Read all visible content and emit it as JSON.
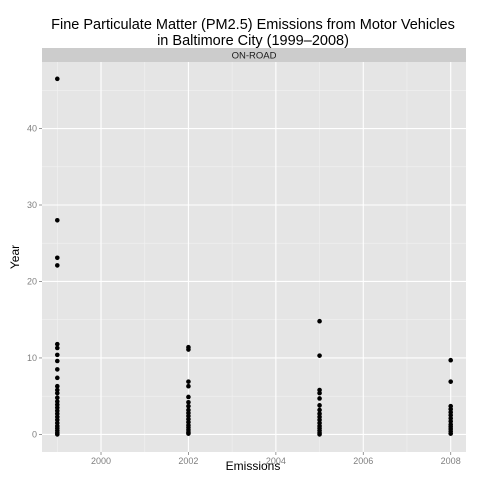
{
  "chart_data": {
    "type": "scatter",
    "title_lines": [
      "Fine Particulate Matter (PM2.5) Emissions from Motor Vehicles",
      "in Baltimore City (1999–2008)"
    ],
    "facet_label": "ON-ROAD",
    "xlabel": "Emissions",
    "ylabel": "Year",
    "xlim": [
      1998.65,
      2008.35
    ],
    "ylim": [
      -2.3,
      48.7
    ],
    "x_ticks": [
      2000,
      2002,
      2004,
      2006,
      2008
    ],
    "y_ticks": [
      0,
      10,
      20,
      30,
      40
    ],
    "grid": true,
    "points": [
      {
        "x": 1999,
        "y": 46.5
      },
      {
        "x": 1999,
        "y": 28.0
      },
      {
        "x": 1999,
        "y": 23.1
      },
      {
        "x": 1999,
        "y": 22.1
      },
      {
        "x": 1999,
        "y": 11.8
      },
      {
        "x": 1999,
        "y": 11.3
      },
      {
        "x": 1999,
        "y": 10.4
      },
      {
        "x": 1999,
        "y": 9.6
      },
      {
        "x": 1999,
        "y": 8.5
      },
      {
        "x": 1999,
        "y": 7.4
      },
      {
        "x": 1999,
        "y": 6.3
      },
      {
        "x": 1999,
        "y": 5.8
      },
      {
        "x": 1999,
        "y": 5.4
      },
      {
        "x": 1999,
        "y": 4.8
      },
      {
        "x": 1999,
        "y": 4.3
      },
      {
        "x": 1999,
        "y": 3.9
      },
      {
        "x": 1999,
        "y": 3.5
      },
      {
        "x": 1999,
        "y": 3.1
      },
      {
        "x": 1999,
        "y": 2.7
      },
      {
        "x": 1999,
        "y": 2.3
      },
      {
        "x": 1999,
        "y": 1.9
      },
      {
        "x": 1999,
        "y": 1.5
      },
      {
        "x": 1999,
        "y": 1.1
      },
      {
        "x": 1999,
        "y": 0.8
      },
      {
        "x": 1999,
        "y": 0.5
      },
      {
        "x": 1999,
        "y": 0.2
      },
      {
        "x": 1999,
        "y": 0.0
      },
      {
        "x": 2002,
        "y": 11.4
      },
      {
        "x": 2002,
        "y": 11.1
      },
      {
        "x": 2002,
        "y": 6.9
      },
      {
        "x": 2002,
        "y": 6.3
      },
      {
        "x": 2002,
        "y": 4.9
      },
      {
        "x": 2002,
        "y": 4.2
      },
      {
        "x": 2002,
        "y": 3.7
      },
      {
        "x": 2002,
        "y": 3.2
      },
      {
        "x": 2002,
        "y": 2.8
      },
      {
        "x": 2002,
        "y": 2.4
      },
      {
        "x": 2002,
        "y": 2.0
      },
      {
        "x": 2002,
        "y": 1.6
      },
      {
        "x": 2002,
        "y": 1.2
      },
      {
        "x": 2002,
        "y": 0.9
      },
      {
        "x": 2002,
        "y": 0.6
      },
      {
        "x": 2002,
        "y": 0.3
      },
      {
        "x": 2002,
        "y": 0.1
      },
      {
        "x": 2005,
        "y": 14.8
      },
      {
        "x": 2005,
        "y": 10.3
      },
      {
        "x": 2005,
        "y": 5.8
      },
      {
        "x": 2005,
        "y": 5.4
      },
      {
        "x": 2005,
        "y": 4.7
      },
      {
        "x": 2005,
        "y": 3.8
      },
      {
        "x": 2005,
        "y": 3.2
      },
      {
        "x": 2005,
        "y": 2.7
      },
      {
        "x": 2005,
        "y": 2.3
      },
      {
        "x": 2005,
        "y": 1.9
      },
      {
        "x": 2005,
        "y": 1.5
      },
      {
        "x": 2005,
        "y": 1.1
      },
      {
        "x": 2005,
        "y": 0.8
      },
      {
        "x": 2005,
        "y": 0.5
      },
      {
        "x": 2005,
        "y": 0.2
      },
      {
        "x": 2005,
        "y": 0.0
      },
      {
        "x": 2008,
        "y": 9.7
      },
      {
        "x": 2008,
        "y": 6.9
      },
      {
        "x": 2008,
        "y": 3.7
      },
      {
        "x": 2008,
        "y": 3.3
      },
      {
        "x": 2008,
        "y": 2.9
      },
      {
        "x": 2008,
        "y": 2.5
      },
      {
        "x": 2008,
        "y": 2.1
      },
      {
        "x": 2008,
        "y": 1.7
      },
      {
        "x": 2008,
        "y": 1.3
      },
      {
        "x": 2008,
        "y": 1.0
      },
      {
        "x": 2008,
        "y": 0.7
      },
      {
        "x": 2008,
        "y": 0.4
      },
      {
        "x": 2008,
        "y": 0.1
      }
    ],
    "colors": {
      "panel": "#e5e5e5",
      "strip": "#cccccc",
      "grid_major": "#ffffff",
      "grid_minor": "#f2f2f2",
      "point": "#000000"
    }
  }
}
